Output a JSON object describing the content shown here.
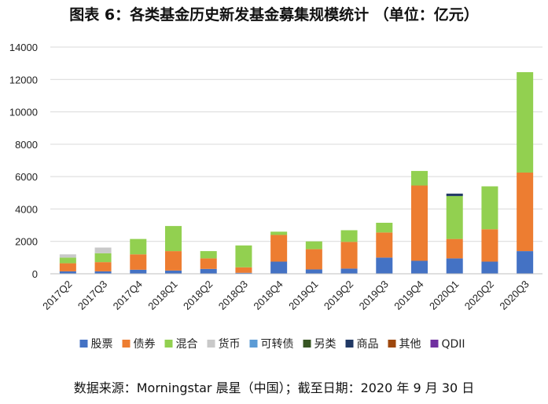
{
  "header": {
    "title": "图表 6：各类基金历史新发基金募集规模统计 （单位：亿元）"
  },
  "footer": {
    "source": "数据来源：Morningstar 晨星（中国）；截至日期：2020 年 9 月 30 日"
  },
  "chart_data": {
    "type": "bar",
    "stacked": true,
    "title": "图表 6：各类基金历史新发基金募集规模统计 （单位：亿元）",
    "xlabel": "",
    "ylabel": "",
    "ylim": [
      0,
      14000
    ],
    "yticks": [
      0,
      2000,
      4000,
      6000,
      8000,
      10000,
      12000,
      14000
    ],
    "grid": true,
    "legend_position": "bottom",
    "categories": [
      "2017Q2",
      "2017Q3",
      "2017Q4",
      "2018Q1",
      "2018Q2",
      "2018Q3",
      "2018Q4",
      "2019Q1",
      "2019Q2",
      "2019Q3",
      "2019Q4",
      "2020Q1",
      "2020Q2",
      "2020Q3"
    ],
    "series": [
      {
        "name": "股票",
        "color": "#4472C4",
        "values": [
          150,
          150,
          250,
          200,
          300,
          60,
          750,
          270,
          320,
          1000,
          800,
          950,
          750,
          1400
        ]
      },
      {
        "name": "债券",
        "color": "#ED7D31",
        "values": [
          500,
          570,
          950,
          1200,
          650,
          340,
          1650,
          1250,
          1650,
          1550,
          4650,
          1200,
          2000,
          4850
        ]
      },
      {
        "name": "混合",
        "color": "#92D050",
        "values": [
          350,
          550,
          950,
          1550,
          450,
          1350,
          200,
          480,
          720,
          600,
          900,
          2650,
          2650,
          6200
        ]
      },
      {
        "name": "货币",
        "color": "#C9C9C9",
        "values": [
          200,
          350,
          0,
          0,
          0,
          0,
          0,
          0,
          0,
          0,
          0,
          0,
          0,
          0
        ]
      },
      {
        "name": "可转债",
        "color": "#5B9BD5",
        "values": [
          0,
          0,
          0,
          0,
          0,
          0,
          0,
          0,
          0,
          0,
          0,
          0,
          0,
          0
        ]
      },
      {
        "name": "另类",
        "color": "#375623",
        "values": [
          0,
          0,
          0,
          0,
          0,
          0,
          0,
          0,
          0,
          0,
          0,
          0,
          0,
          0
        ]
      },
      {
        "name": "商品",
        "color": "#203864",
        "values": [
          0,
          0,
          0,
          0,
          0,
          0,
          0,
          0,
          0,
          0,
          0,
          150,
          0,
          0
        ]
      },
      {
        "name": "其他",
        "color": "#9E480E",
        "values": [
          0,
          0,
          0,
          0,
          0,
          0,
          0,
          0,
          0,
          0,
          0,
          0,
          0,
          0
        ]
      },
      {
        "name": "QDII",
        "color": "#7030A0",
        "values": [
          0,
          0,
          0,
          0,
          0,
          0,
          0,
          0,
          0,
          0,
          0,
          0,
          0,
          0
        ]
      }
    ]
  }
}
